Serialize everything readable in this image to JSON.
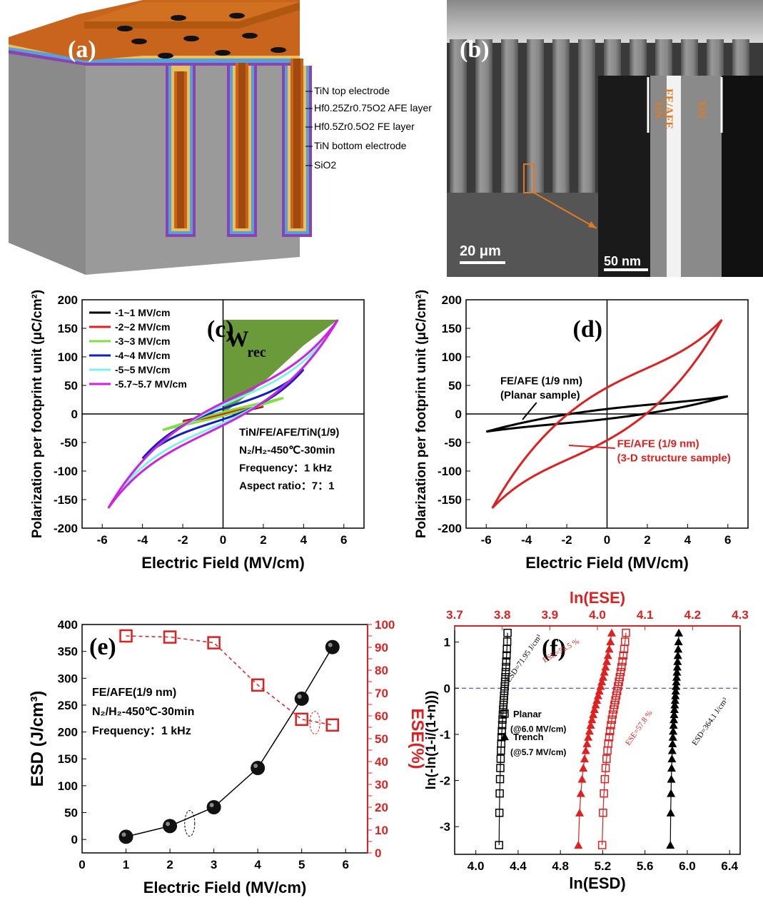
{
  "panels": {
    "a": {
      "label": "(a)",
      "layers": [
        "TiN top electrode",
        "Hf0.25Zr0.75O2  AFE layer",
        "Hf0.5Zr0.5O2  FE layer",
        "TiN bottom electrode",
        "SiO2"
      ],
      "colors": {
        "tin": "#c8641c",
        "afe": "#5aa0d8",
        "fe": "#e8c060",
        "sio2": "#9a9a9a",
        "bottom": "#8a44b0"
      }
    },
    "b": {
      "label": "(b)",
      "scale_main": "20 μm",
      "scale_inset": "50 nm",
      "inset_labels": [
        "TiN",
        "FE/AFE",
        "TiN"
      ]
    }
  },
  "chart_data": [
    {
      "id": "c",
      "label": "(c)",
      "type": "line",
      "xlabel": "Electric Field (MV/cm)",
      "ylabel": "Polarization per footprint unit (μC/cm²)",
      "xlim": [
        -7,
        7
      ],
      "ylim": [
        -200,
        200
      ],
      "xticks": [
        -6,
        -4,
        -2,
        0,
        2,
        4,
        6
      ],
      "yticks": [
        -200,
        -150,
        -100,
        -50,
        0,
        50,
        100,
        150,
        200
      ],
      "area_label": "W_rec",
      "legend_loc": "top-left",
      "series": [
        {
          "name": "-1~1 MV/cm",
          "color": "#000000",
          "emax": 2.0,
          "pmax": 13
        },
        {
          "name": "-2~2 MV/cm",
          "color": "#e02020",
          "emax": 2.0,
          "pmax": 14
        },
        {
          "name": "-3~3 MV/cm",
          "color": "#80e040",
          "emax": 3.0,
          "pmax": 28
        },
        {
          "name": "-4~4 MV/cm",
          "color": "#1020c0",
          "emax": 4.0,
          "pmax": 78
        },
        {
          "name": "-5~5 MV/cm",
          "color": "#80f0f0",
          "emax": 5.0,
          "pmax": 130
        },
        {
          "name": "-5.7~5.7 MV/cm",
          "color": "#d020e0",
          "emax": 5.7,
          "pmax": 165
        }
      ],
      "annotation": [
        "TiN/FE/AFE/TiN(1/9)",
        "N₂/H₂-450℃-30min",
        "Frequency：1 kHz",
        "Aspect ratio：7：1"
      ]
    },
    {
      "id": "d",
      "label": "(d)",
      "type": "line",
      "xlabel": "Electric Field (MV/cm)",
      "ylabel": "Polarization per footprint unit (μC/cm²)",
      "xlim": [
        -7,
        7
      ],
      "ylim": [
        -200,
        200
      ],
      "xticks": [
        -6,
        -4,
        -2,
        0,
        2,
        4,
        6
      ],
      "yticks": [
        -200,
        -150,
        -100,
        -50,
        0,
        50,
        100,
        150,
        200
      ],
      "series": [
        {
          "name": "FE/AFE (1/9 nm) (Planar sample)",
          "color": "#000000",
          "emax": 6.0,
          "pmax": 31
        },
        {
          "name": "FE/AFE (1/9 nm) (3-D structure sample)",
          "color": "#e02020",
          "emax": 5.7,
          "pmax": 165
        }
      ],
      "annotations": [
        {
          "lines": [
            "FE/AFE (1/9 nm)",
            "(Planar sample)"
          ],
          "color": "#000000"
        },
        {
          "lines": [
            "FE/AFE (1/9 nm)",
            "(3-D structure sample)"
          ],
          "color": "#e02020"
        }
      ]
    },
    {
      "id": "e",
      "label": "(e)",
      "type": "scatter",
      "xlabel": "Electric Field (MV/cm)",
      "ylabel": "ESD (J/cm³)",
      "y2label": "ESE(%)",
      "xlim": [
        0,
        6.5
      ],
      "ylim": [
        -25,
        400
      ],
      "y2lim": [
        0,
        100
      ],
      "xticks": [
        0,
        1,
        2,
        3,
        4,
        5,
        6
      ],
      "yticks": [
        0,
        50,
        100,
        150,
        200,
        250,
        300,
        350,
        400
      ],
      "y2ticks": [
        0,
        5,
        10,
        15,
        20,
        25,
        30,
        35,
        40,
        45,
        50,
        55,
        60,
        65,
        70,
        75,
        80,
        85,
        90,
        95,
        100
      ],
      "x": [
        1,
        2,
        3,
        4,
        5,
        5.7
      ],
      "esd": [
        5,
        25,
        60,
        133,
        262,
        358
      ],
      "ese": [
        95,
        94.5,
        92,
        73.5,
        58.5,
        56
      ],
      "annotation": [
        "FE/AFE(1/9 nm)",
        "N₂/H₂-450℃-30min",
        "Frequency：1 kHz"
      ]
    },
    {
      "id": "f",
      "label": "(f)",
      "type": "scatter",
      "xlabel": "ln(ESD)",
      "x2label": "ln(ESE)",
      "ylabel": "ln(-ln(1-i/(1+n)))",
      "xlim": [
        3.8,
        6.5
      ],
      "x2lim": [
        3.7,
        4.3
      ],
      "ylim": [
        -3.6,
        1.35
      ],
      "xticks": [
        4.0,
        4.4,
        4.8,
        5.2,
        5.6,
        6.0,
        6.4
      ],
      "x2ticks": [
        3.7,
        3.8,
        3.9,
        4.0,
        4.1,
        4.2,
        4.3
      ],
      "yticks": [
        -3,
        -2,
        -1,
        0,
        1
      ],
      "y_points": [
        -3.4,
        -2.7,
        -2.28,
        -1.97,
        -1.73,
        -1.53,
        -1.35,
        -1.2,
        -1.06,
        -0.93,
        -0.8,
        -0.68,
        -0.57,
        -0.46,
        -0.36,
        -0.26,
        -0.16,
        -0.06,
        0.04,
        0.14,
        0.24,
        0.35,
        0.46,
        0.58,
        0.71,
        0.85,
        1.01,
        1.2
      ],
      "series": [
        {
          "name": "Planar (@6.0 MV/cm)",
          "marker": "square",
          "color": "#000000",
          "axis": "bottom",
          "x_low": 4.22,
          "x_high": 4.3
        },
        {
          "name": "Trench (@5.7 MV/cm)",
          "marker": "triangle",
          "color": "#000000",
          "axis": "bottom",
          "x_low": 5.84,
          "x_high": 5.92
        },
        {
          "name": "ESE Planar",
          "marker": "triangle",
          "color": "#e02020",
          "axis": "top",
          "x_low": 3.96,
          "x_high": 4.03
        },
        {
          "name": "ESE Trench",
          "marker": "square",
          "color": "#e02020",
          "axis": "top",
          "x_low": 4.01,
          "x_high": 4.06
        }
      ],
      "legend": [
        {
          "label": "Planar",
          "sub": "(@6.0 MV/cm)"
        },
        {
          "label": "Trench",
          "sub": "(@5.7 MV/cm)"
        }
      ],
      "annotations": [
        "ESD=71.95 J/cm³",
        "ESE=56.5 %",
        "ESE=57.8 %",
        "ESD=364.1 J/cm³"
      ]
    }
  ]
}
